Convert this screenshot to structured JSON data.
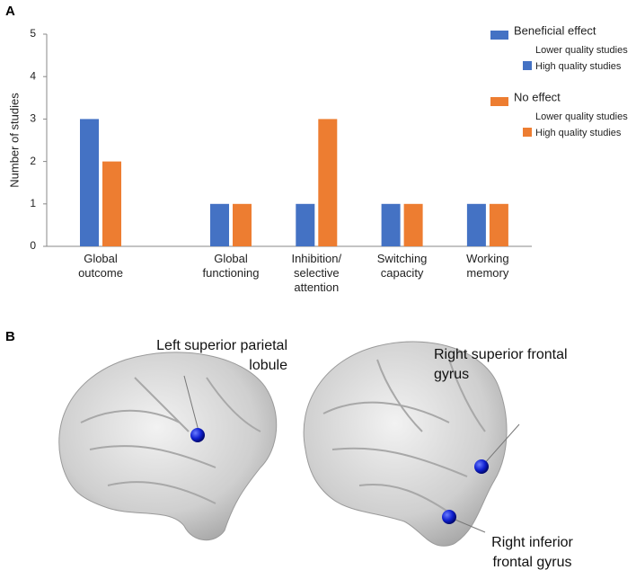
{
  "panel_labels": [
    "A",
    "B"
  ],
  "chart_data": {
    "type": "bar",
    "ylabel": "Number of studies",
    "categories": [
      "Global outcome",
      "Global functioning",
      "Inhibition/ selective attention",
      "Switching capacity",
      "Working memory"
    ],
    "series": [
      {
        "name": "Beneficial effect",
        "color": "#4472c4",
        "values": [
          3,
          1,
          1,
          1,
          1
        ]
      },
      {
        "name": "No effect",
        "color": "#ed7d31",
        "values": [
          2,
          1,
          3,
          1,
          1
        ]
      }
    ],
    "legend_subentries": [
      "Lower quality studies",
      "High quality studies"
    ],
    "ylim": [
      0,
      5
    ],
    "yticks": [
      0,
      1,
      2,
      3,
      4,
      5
    ]
  },
  "brain_labels": [
    "Left superior parietal lobule",
    "Right superior frontal gyrus",
    "Right inferior frontal gyrus"
  ]
}
